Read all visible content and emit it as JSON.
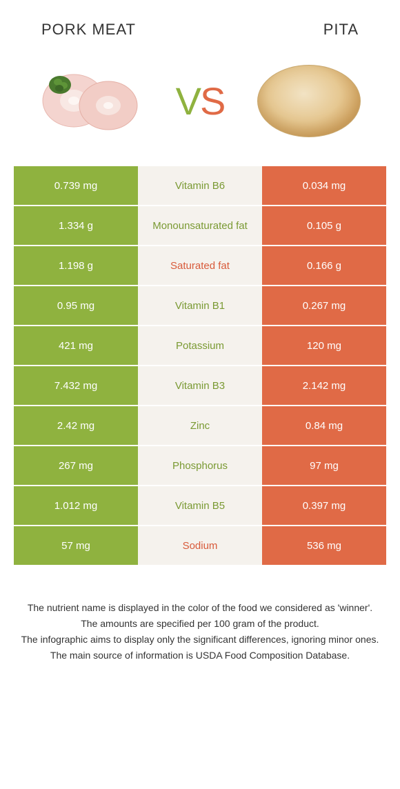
{
  "header": {
    "left_title": "PORK MEAT",
    "right_title": "PITA",
    "vs_v": "V",
    "vs_s": "S"
  },
  "colors": {
    "left_bg": "#8fb23f",
    "right_bg": "#e06a46",
    "mid_bg": "#f5f2ed",
    "winner_left": "#7a9a33",
    "winner_right": "#d85a3a"
  },
  "rows": [
    {
      "left": "0.739 mg",
      "label": "Vitamin B6",
      "right": "0.034 mg",
      "winner": "left"
    },
    {
      "left": "1.334 g",
      "label": "Monounsaturated fat",
      "right": "0.105 g",
      "winner": "left"
    },
    {
      "left": "1.198 g",
      "label": "Saturated fat",
      "right": "0.166 g",
      "winner": "right"
    },
    {
      "left": "0.95 mg",
      "label": "Vitamin B1",
      "right": "0.267 mg",
      "winner": "left"
    },
    {
      "left": "421 mg",
      "label": "Potassium",
      "right": "120 mg",
      "winner": "left"
    },
    {
      "left": "7.432 mg",
      "label": "Vitamin B3",
      "right": "2.142 mg",
      "winner": "left"
    },
    {
      "left": "2.42 mg",
      "label": "Zinc",
      "right": "0.84 mg",
      "winner": "left"
    },
    {
      "left": "267 mg",
      "label": "Phosphorus",
      "right": "97 mg",
      "winner": "left"
    },
    {
      "left": "1.012 mg",
      "label": "Vitamin B5",
      "right": "0.397 mg",
      "winner": "left"
    },
    {
      "left": "57 mg",
      "label": "Sodium",
      "right": "536 mg",
      "winner": "right"
    }
  ],
  "footer": {
    "line1": "The nutrient name is displayed in the color of the food we considered as 'winner'.",
    "line2": "The amounts are specified per 100 gram of the product.",
    "line3": "The infographic aims to display only the significant differences, ignoring minor ones.",
    "line4": "The main source of information is USDA Food Composition Database."
  }
}
